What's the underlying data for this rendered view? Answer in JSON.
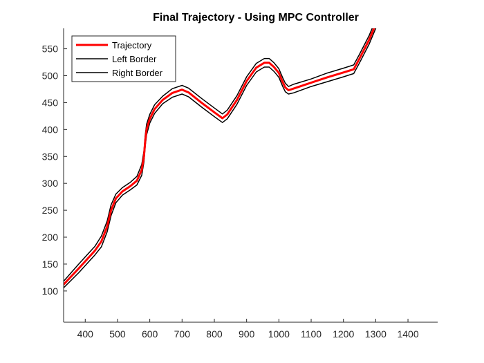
{
  "chart_data": {
    "type": "line",
    "title": "Final Trajectory - Using MPC Controller",
    "xlabel": "",
    "ylabel": "",
    "xlim": [
      333,
      1492
    ],
    "ylim": [
      42,
      588
    ],
    "xticks": [
      400,
      500,
      600,
      700,
      800,
      900,
      1000,
      1100,
      1200,
      1300,
      1400
    ],
    "yticks": [
      100,
      150,
      200,
      250,
      300,
      350,
      400,
      450,
      500,
      550
    ],
    "grid": false,
    "legend_position": "top-left",
    "series": [
      {
        "name": "Trajectory",
        "color": "#ff0000",
        "x": [
          333,
          380,
          430,
          450,
          468,
          480,
          495,
          515,
          540,
          560,
          575,
          582,
          586,
          590,
          600,
          615,
          640,
          670,
          700,
          720,
          760,
          800,
          825,
          840,
          870,
          900,
          930,
          955,
          970,
          985,
          1000,
          1012,
          1020,
          1030,
          1045,
          1100,
          1150,
          1200,
          1232,
          1250,
          1280,
          1310
        ],
        "y": [
          112,
          142,
          175,
          192,
          220,
          250,
          272,
          285,
          295,
          305,
          325,
          350,
          380,
          400,
          420,
          438,
          455,
          468,
          474,
          469,
          450,
          432,
          421,
          428,
          455,
          490,
          515,
          524,
          524,
          516,
          505,
          488,
          478,
          473,
          476,
          487,
          497,
          506,
          512,
          532,
          567,
          610
        ]
      },
      {
        "name": "Left Border",
        "color": "#000000",
        "x": [
          333,
          380,
          430,
          450,
          468,
          480,
          495,
          515,
          540,
          560,
          575,
          582,
          586,
          590,
          600,
          615,
          640,
          670,
          700,
          720,
          760,
          800,
          825,
          840,
          870,
          900,
          930,
          955,
          970,
          985,
          1000,
          1012,
          1020,
          1030,
          1045,
          1100,
          1150,
          1200,
          1232,
          1250,
          1280,
          1310
        ],
        "y": [
          118,
          150,
          183,
          202,
          230,
          260,
          280,
          292,
          302,
          313,
          335,
          360,
          390,
          410,
          428,
          446,
          462,
          476,
          482,
          477,
          458,
          440,
          429,
          436,
          463,
          498,
          523,
          532,
          532,
          524,
          513,
          496,
          486,
          480,
          484,
          494,
          505,
          514,
          520,
          540,
          575,
          618
        ]
      },
      {
        "name": "Right Border",
        "color": "#000000",
        "x": [
          333,
          380,
          430,
          450,
          468,
          480,
          495,
          515,
          540,
          560,
          575,
          582,
          586,
          590,
          600,
          615,
          640,
          670,
          700,
          720,
          760,
          800,
          825,
          840,
          870,
          900,
          930,
          955,
          970,
          985,
          1000,
          1012,
          1020,
          1030,
          1045,
          1100,
          1150,
          1200,
          1232,
          1250,
          1280,
          1310
        ],
        "y": [
          106,
          134,
          167,
          182,
          210,
          240,
          264,
          278,
          288,
          297,
          315,
          340,
          370,
          390,
          412,
          430,
          448,
          460,
          466,
          461,
          442,
          424,
          413,
          420,
          447,
          482,
          507,
          516,
          516,
          508,
          497,
          480,
          470,
          466,
          468,
          480,
          489,
          498,
          504,
          524,
          559,
          602
        ]
      }
    ]
  }
}
